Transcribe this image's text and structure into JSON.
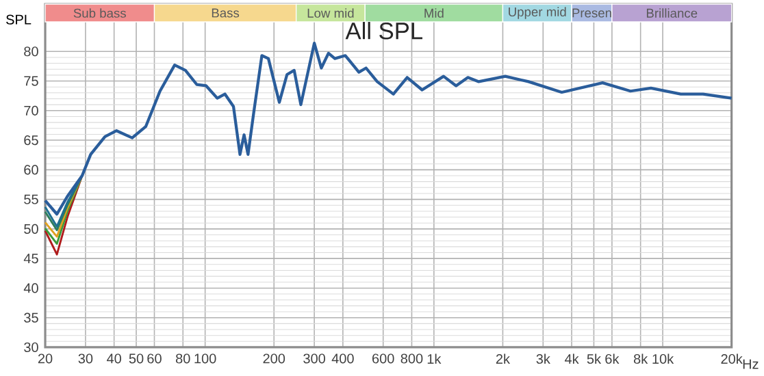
{
  "chart_data": {
    "type": "line",
    "title": "All SPL",
    "ylabel": "SPL",
    "log": "x",
    "grid": true,
    "line_style": "solid",
    "marker": "none",
    "xlabel": "Hz",
    "xlim": [
      20,
      20000
    ],
    "ylim": [
      30,
      88
    ],
    "xticks": [
      20,
      30,
      40,
      50,
      60,
      80,
      100,
      200,
      300,
      400,
      600,
      800,
      {
        "value": 1000,
        "label": "1k"
      },
      {
        "value": 2000,
        "label": "2k"
      },
      {
        "value": 3000,
        "label": "3k"
      },
      {
        "value": 4000,
        "label": "4k"
      },
      {
        "value": 5000,
        "label": "5k"
      },
      {
        "value": 6000,
        "label": "6k"
      },
      {
        "value": 8000,
        "label": "8k"
      },
      {
        "value": 10000,
        "label": "10k"
      },
      {
        "value": 20000,
        "label": "20k"
      }
    ],
    "yticks": [
      30,
      35,
      40,
      45,
      50,
      55,
      60,
      65,
      70,
      75,
      80
    ],
    "bands": [
      {
        "axis": "x",
        "from": 20,
        "to": 60,
        "label": "Sub bass",
        "color": "#f08c8c"
      },
      {
        "axis": "x",
        "from": 60,
        "to": 250,
        "label": "Bass",
        "color": "#f6d88e"
      },
      {
        "axis": "x",
        "from": 250,
        "to": 500,
        "label": "Low mid",
        "color": "#c6e69c"
      },
      {
        "axis": "x",
        "from": 500,
        "to": 2000,
        "label": "Mid",
        "color": "#a0dca0"
      },
      {
        "axis": "x",
        "from": 2000,
        "to": 4000,
        "label": "Upper mid",
        "color": "#a2d8e2"
      },
      {
        "axis": "x",
        "from": 4000,
        "to": 6000,
        "label": "Presen",
        "color": "#aabae2"
      },
      {
        "axis": "x",
        "from": 6000,
        "to": 20000,
        "label": "Brilliance",
        "color": "#b8a2d2"
      }
    ],
    "series": [
      {
        "color": "#b01c1c",
        "x": [
          20,
          22.5,
          25,
          29
        ],
        "values": [
          49.7,
          45.7,
          52,
          59
        ]
      },
      {
        "color": "#3a9a3a",
        "x": [
          20,
          22.5,
          25,
          29
        ],
        "values": [
          50.1,
          47.5,
          53,
          59
        ]
      },
      {
        "color": "#e0a020",
        "x": [
          20,
          22.5,
          25,
          29
        ],
        "values": [
          51.1,
          48.7,
          53.5,
          59
        ]
      },
      {
        "color": "#2e7d5b",
        "x": [
          20,
          22.5,
          25,
          29
        ],
        "values": [
          52.9,
          49.8,
          54,
          59
        ]
      },
      {
        "color": "#1f6f8f",
        "x": [
          20,
          22.5,
          25,
          29
        ],
        "values": [
          53.7,
          50.4,
          54.5,
          59
        ]
      },
      {
        "color": "#2a5d9b",
        "x": [
          20,
          22.5,
          25,
          29,
          31.6,
          36.5,
          41,
          48,
          55,
          63.5,
          73.6,
          82,
          92,
          101,
          113,
          122,
          133,
          142,
          148,
          154,
          163,
          177,
          189,
          211,
          228,
          245,
          262,
          300,
          322,
          346,
          369,
          410,
          470,
          505,
          565,
          665,
          764,
          888,
          1102,
          1250,
          1408,
          1570,
          2050,
          2590,
          3620,
          5460,
          7230,
          8880,
          12000,
          15000,
          20000
        ],
        "values": [
          54.8,
          52.5,
          55.5,
          59,
          62.6,
          65.6,
          66.6,
          65.4,
          67.3,
          73.3,
          77.7,
          76.8,
          74.4,
          74.2,
          72.1,
          72.8,
          70.7,
          62.6,
          65.9,
          62.6,
          69.6,
          79.3,
          78.8,
          71.4,
          76.1,
          76.8,
          71.0,
          81.4,
          77.2,
          79.7,
          78.8,
          79.3,
          76.5,
          77.2,
          74.9,
          72.8,
          75.6,
          73.5,
          75.8,
          74.2,
          75.6,
          74.9,
          75.8,
          74.9,
          73.1,
          74.7,
          73.3,
          73.8,
          72.8,
          72.8,
          72.1
        ]
      }
    ]
  }
}
